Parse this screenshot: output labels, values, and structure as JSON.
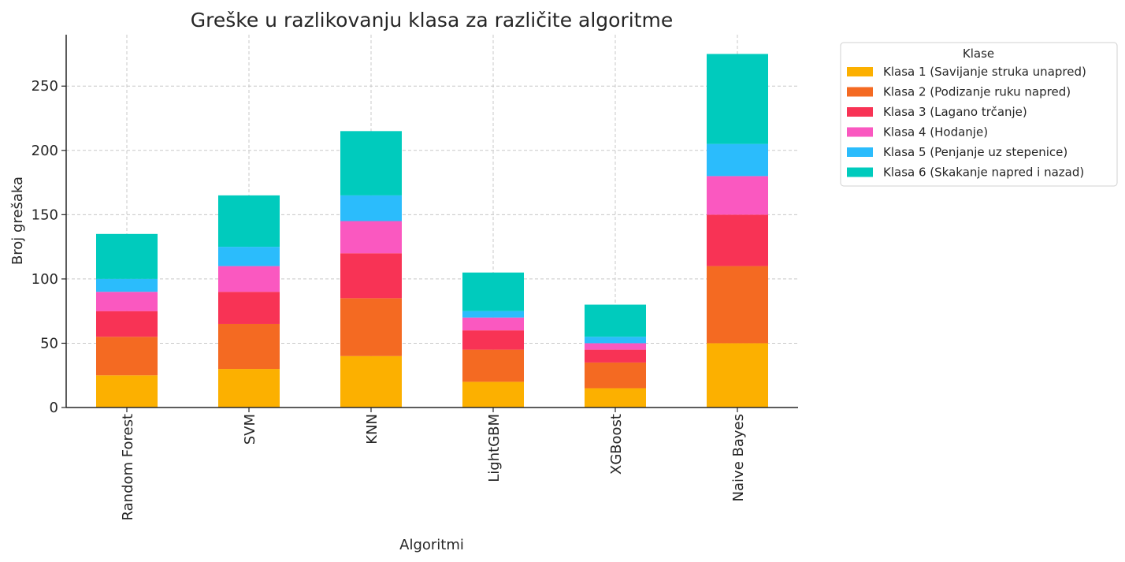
{
  "chart_data": {
    "type": "bar",
    "stacked": true,
    "title": "Greške u razlikovanju klasa za različite algoritme",
    "xlabel": "Algoritmi",
    "ylabel": "Broj grešaka",
    "ylim": [
      0,
      290
    ],
    "yticks": [
      0,
      50,
      100,
      150,
      200,
      250
    ],
    "grid": true,
    "legend_title": "Klase",
    "legend_position": "outside-top-right",
    "categories": [
      "Random Forest",
      "SVM",
      "KNN",
      "LightGBM",
      "XGBoost",
      "Naive Bayes"
    ],
    "series": [
      {
        "name": "Klasa 1 (Savijanje struka unapred)",
        "color": "#fcb000",
        "values": [
          25,
          30,
          40,
          20,
          15,
          50
        ]
      },
      {
        "name": "Klasa 2 (Podizanje ruku napred)",
        "color": "#f46a22",
        "values": [
          30,
          35,
          45,
          25,
          20,
          60
        ]
      },
      {
        "name": "Klasa 3 (Lagano trčanje)",
        "color": "#f83355",
        "values": [
          20,
          25,
          35,
          15,
          10,
          40
        ]
      },
      {
        "name": "Klasa 4 (Hodanje)",
        "color": "#fa58c0",
        "values": [
          15,
          20,
          25,
          10,
          5,
          30
        ]
      },
      {
        "name": "Klasa 5 (Penjanje uz stepenice)",
        "color": "#2bbcfc",
        "values": [
          10,
          15,
          20,
          5,
          5,
          25
        ]
      },
      {
        "name": "Klasa 6 (Skakanje napred i nazad)",
        "color": "#00cbbd",
        "values": [
          35,
          40,
          50,
          30,
          25,
          70
        ]
      }
    ]
  }
}
